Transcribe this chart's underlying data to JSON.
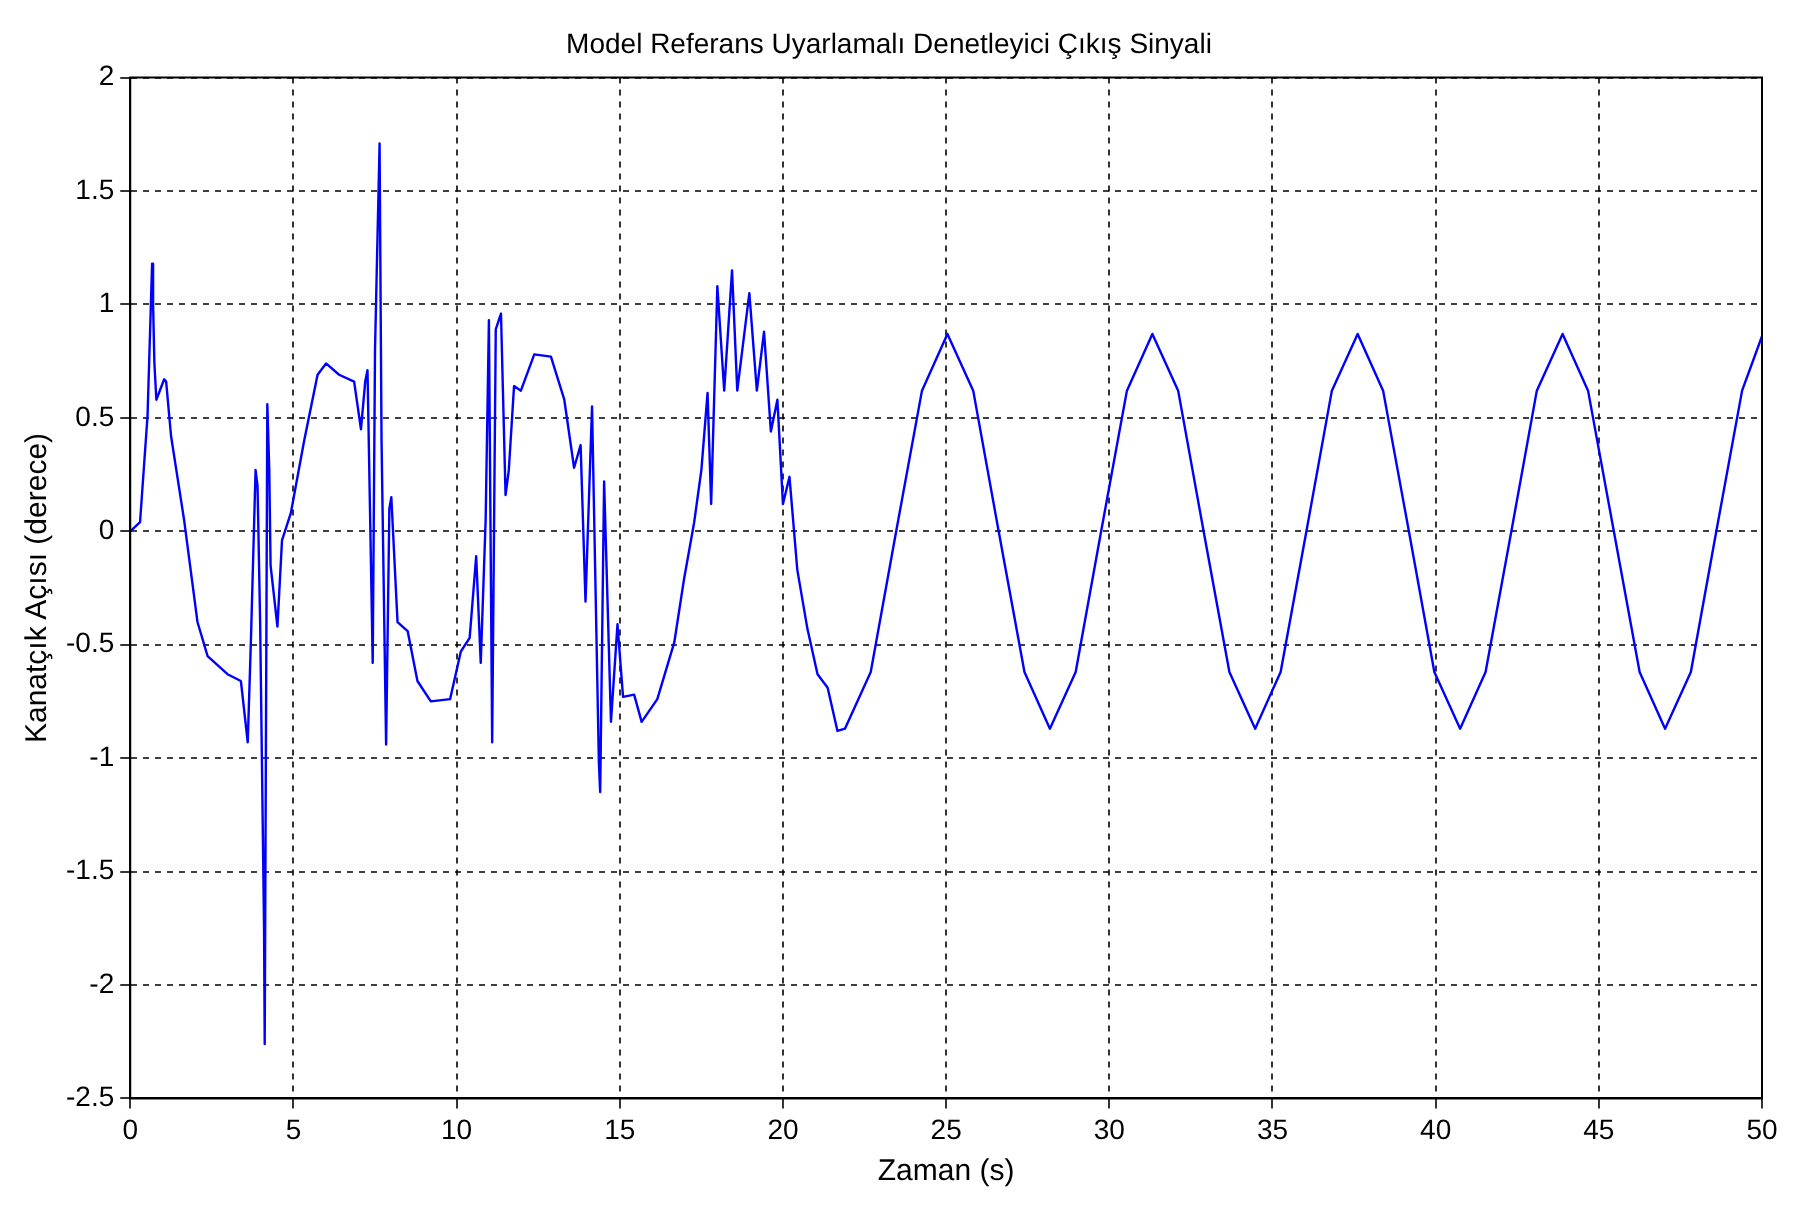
{
  "chart_data": {
    "type": "line",
    "title": "Model Referans Uyarlamalı Denetleyici Çıkış Sinyali",
    "xlabel": "Zaman (s)",
    "ylabel": "Kanatçık Açısı (derece)",
    "xlim": [
      0,
      50
    ],
    "xticks": [
      0,
      5,
      10,
      15,
      20,
      25,
      30,
      35,
      40,
      45,
      50
    ],
    "ylim": [
      -2.5,
      2
    ],
    "yticks": [
      -2.5,
      -2,
      -1.5,
      -1,
      -0.5,
      0,
      0.5,
      1,
      1.5,
      2
    ],
    "grid": true,
    "marker": "none",
    "line_style": "solid",
    "series": [
      {
        "color": "#0000ff",
        "x": [
          0,
          0.3,
          0.53,
          0.67,
          0.7,
          0.74,
          0.8,
          1.04,
          1.1,
          1.25,
          1.65,
          2.06,
          2.37,
          2.98,
          3.39,
          3.6,
          3.7,
          3.84,
          3.9,
          3.98,
          4.1,
          4.12,
          4.2,
          4.26,
          4.3,
          4.51,
          4.65,
          4.92,
          5.33,
          5.74,
          6.0,
          6.4,
          6.86,
          7.07,
          7.2,
          7.27,
          7.43,
          7.5,
          7.64,
          7.7,
          7.84,
          7.94,
          8.0,
          8.19,
          8.5,
          8.8,
          9.21,
          9.8,
          10.13,
          10.4,
          10.6,
          10.74,
          10.89,
          10.99,
          11.09,
          11.2,
          11.36,
          11.5,
          11.6,
          11.76,
          11.97,
          12.38,
          12.89,
          13.3,
          13.6,
          13.8,
          13.95,
          14.15,
          14.36,
          14.4,
          14.52,
          14.73,
          14.93,
          15.1,
          15.44,
          15.67,
          16.15,
          16.67,
          16.97,
          17.28,
          17.5,
          17.69,
          17.8,
          17.99,
          18.2,
          18.44,
          18.6,
          18.97,
          19.2,
          19.42,
          19.63,
          19.83,
          20.0,
          20.2,
          20.44,
          20.75,
          21.06,
          21.37,
          21.67,
          21.9,
          22.69,
          23.47,
          24.26,
          25.04,
          25.83,
          26.61,
          27.4,
          28.18,
          28.97,
          29.75,
          30.54,
          31.32,
          32.11,
          32.89,
          33.68,
          34.47,
          35.25,
          36.04,
          36.82,
          37.61,
          38.39,
          39.18,
          39.96,
          40.75,
          41.53,
          42.32,
          43.1,
          43.89,
          44.67,
          45.46,
          46.25,
          47.03,
          47.82,
          48.6,
          49.39,
          50
        ],
        "values": [
          0,
          0.04,
          0.51,
          1.18,
          1.0,
          0.74,
          0.58,
          0.67,
          0.66,
          0.42,
          0.05,
          -0.4,
          -0.55,
          -0.63,
          -0.66,
          -0.93,
          -0.47,
          0.27,
          0.2,
          -0.4,
          -1.75,
          -2.26,
          0.56,
          0.27,
          -0.15,
          -0.42,
          -0.04,
          0.08,
          0.4,
          0.69,
          0.74,
          0.69,
          0.66,
          0.45,
          0.66,
          0.71,
          -0.58,
          0.8,
          1.71,
          0.4,
          -0.94,
          0.1,
          0.15,
          -0.4,
          -0.44,
          -0.66,
          -0.75,
          -0.74,
          -0.53,
          -0.47,
          -0.11,
          -0.58,
          0.05,
          0.93,
          -0.93,
          0.89,
          0.96,
          0.16,
          0.27,
          0.64,
          0.62,
          0.78,
          0.77,
          0.58,
          0.28,
          0.38,
          -0.31,
          0.55,
          -1.02,
          -1.15,
          0.22,
          -0.84,
          -0.41,
          -0.73,
          -0.72,
          -0.84,
          -0.74,
          -0.49,
          -0.21,
          0.04,
          0.27,
          0.61,
          0.12,
          1.08,
          0.62,
          1.15,
          0.62,
          1.05,
          0.62,
          0.88,
          0.44,
          0.58,
          0.12,
          0.24,
          -0.17,
          -0.43,
          -0.63,
          -0.69,
          -0.88,
          -0.87,
          -0.62,
          0,
          0.62,
          0.87,
          0.62,
          0,
          -0.62,
          -0.87,
          -0.62,
          0,
          0.62,
          0.87,
          0.62,
          0,
          -0.62,
          -0.87,
          -0.62,
          0,
          0.62,
          0.87,
          0.62,
          0,
          -0.62,
          -0.87,
          -0.62,
          0,
          0.62,
          0.87,
          0.62,
          0,
          -0.62,
          -0.87,
          -0.62,
          0,
          0.62,
          0.86
        ]
      }
    ]
  }
}
